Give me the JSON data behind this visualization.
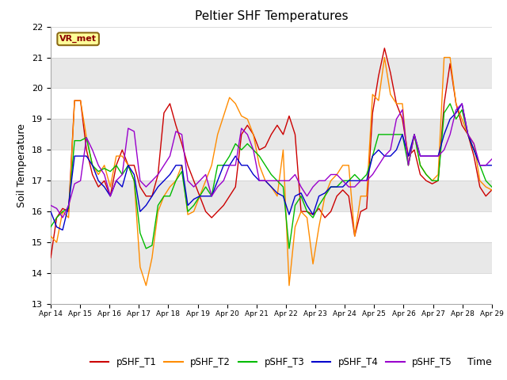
{
  "title": "Peltier SHF Temperatures",
  "xlabel": "Time",
  "ylabel": "Soil Temperature",
  "ylim": [
    13.0,
    22.0
  ],
  "yticks": [
    13.0,
    14.0,
    15.0,
    16.0,
    17.0,
    18.0,
    19.0,
    20.0,
    21.0,
    22.0
  ],
  "xtick_labels": [
    "Apr 14",
    "Apr 15",
    "Apr 16",
    "Apr 17",
    "Apr 18",
    "Apr 19",
    "Apr 20",
    "Apr 21",
    "Apr 22",
    "Apr 23",
    "Apr 24",
    "Apr 25",
    "Apr 26",
    "Apr 27",
    "Apr 28",
    "Apr 29"
  ],
  "annotation_text": "VR_met",
  "annotation_color": "#8B0000",
  "annotation_bg": "#FFFF99",
  "annotation_border": "#8B6914",
  "colors": {
    "T1": "#CC0000",
    "T2": "#FF8C00",
    "T3": "#00BB00",
    "T4": "#0000CC",
    "T5": "#9900CC"
  },
  "legend_labels": [
    "pSHF_T1",
    "pSHF_T2",
    "pSHF_T3",
    "pSHF_T4",
    "pSHF_T5"
  ],
  "bg_white": "#FFFFFF",
  "bg_gray": "#E8E8E8",
  "T1": [
    14.5,
    15.8,
    16.1,
    16.0,
    19.6,
    19.6,
    18.0,
    17.2,
    16.8,
    17.0,
    16.5,
    17.5,
    18.0,
    17.5,
    17.5,
    16.8,
    16.5,
    16.5,
    17.2,
    19.2,
    19.5,
    18.8,
    18.2,
    17.5,
    17.0,
    16.5,
    16.0,
    15.8,
    16.0,
    16.2,
    16.5,
    16.8,
    18.5,
    18.8,
    18.5,
    18.0,
    18.1,
    18.5,
    18.8,
    18.5,
    19.1,
    18.5,
    16.0,
    16.0,
    15.9,
    16.1,
    15.8,
    16.0,
    16.5,
    16.7,
    16.5,
    15.2,
    16.0,
    16.1,
    19.2,
    20.4,
    21.3,
    20.5,
    19.5,
    19.0,
    17.8,
    18.0,
    17.2,
    17.0,
    16.9,
    17.0,
    19.5,
    20.8,
    19.5,
    18.8,
    18.5,
    17.8,
    16.8,
    16.5,
    16.7
  ],
  "T2": [
    15.2,
    15.0,
    16.0,
    15.8,
    19.6,
    19.6,
    18.4,
    17.5,
    17.2,
    17.5,
    16.8,
    17.8,
    17.8,
    17.5,
    17.0,
    14.2,
    13.6,
    14.5,
    16.0,
    16.5,
    16.8,
    17.0,
    17.5,
    15.9,
    16.0,
    16.5,
    17.0,
    17.5,
    18.5,
    19.1,
    19.7,
    19.5,
    19.1,
    19.0,
    18.5,
    17.5,
    17.0,
    16.8,
    16.5,
    18.0,
    13.6,
    15.5,
    16.0,
    15.8,
    14.3,
    15.5,
    16.5,
    17.0,
    17.2,
    17.5,
    17.5,
    15.2,
    16.5,
    16.5,
    19.8,
    19.6,
    21.0,
    19.8,
    19.5,
    19.5,
    17.5,
    18.5,
    17.5,
    17.2,
    17.0,
    17.2,
    21.0,
    21.0,
    19.5,
    19.0,
    18.5,
    18.2,
    17.0,
    16.8,
    16.7
  ],
  "T3": [
    15.5,
    15.8,
    16.0,
    16.1,
    18.3,
    18.3,
    18.4,
    17.5,
    17.3,
    17.4,
    17.3,
    17.5,
    17.2,
    17.5,
    17.0,
    15.3,
    14.8,
    14.9,
    16.2,
    16.5,
    16.5,
    17.0,
    17.3,
    16.0,
    16.2,
    16.5,
    16.8,
    16.5,
    17.5,
    17.5,
    17.8,
    18.2,
    18.0,
    18.2,
    18.0,
    17.8,
    17.5,
    17.2,
    17.0,
    16.8,
    14.8,
    16.2,
    16.5,
    16.0,
    15.8,
    16.2,
    16.5,
    16.8,
    16.8,
    17.0,
    17.0,
    17.2,
    17.0,
    17.2,
    17.8,
    18.5,
    18.5,
    18.5,
    18.5,
    18.5,
    17.5,
    18.5,
    17.5,
    17.2,
    17.0,
    17.0,
    19.2,
    19.5,
    19.0,
    19.3,
    18.5,
    18.0,
    17.5,
    17.0,
    16.8
  ],
  "T4": [
    16.0,
    15.5,
    15.4,
    16.2,
    17.8,
    17.8,
    17.8,
    17.5,
    17.0,
    16.8,
    16.5,
    17.0,
    16.8,
    17.5,
    17.2,
    16.0,
    16.2,
    16.5,
    16.8,
    17.0,
    17.2,
    17.5,
    17.5,
    16.2,
    16.4,
    16.5,
    16.5,
    16.5,
    17.0,
    17.5,
    17.5,
    17.8,
    17.5,
    17.5,
    17.2,
    17.0,
    17.0,
    16.8,
    16.6,
    16.5,
    15.9,
    16.5,
    16.6,
    16.2,
    15.9,
    16.5,
    16.6,
    16.8,
    16.8,
    16.8,
    17.0,
    17.0,
    17.0,
    17.0,
    17.8,
    18.0,
    17.8,
    17.8,
    18.0,
    18.5,
    17.8,
    18.5,
    17.8,
    17.8,
    17.8,
    17.8,
    18.5,
    19.0,
    19.2,
    19.5,
    18.5,
    18.0,
    17.5,
    17.5,
    17.5
  ],
  "T5": [
    16.2,
    16.1,
    15.8,
    16.2,
    16.9,
    17.0,
    18.4,
    18.0,
    17.5,
    17.2,
    16.5,
    17.0,
    17.2,
    18.7,
    18.6,
    17.0,
    16.8,
    17.0,
    17.2,
    17.5,
    17.8,
    18.6,
    18.5,
    17.0,
    16.8,
    17.0,
    17.2,
    16.5,
    16.8,
    17.0,
    17.5,
    17.5,
    18.7,
    18.5,
    18.0,
    17.0,
    17.0,
    17.0,
    17.0,
    17.0,
    17.0,
    17.2,
    16.8,
    16.5,
    16.8,
    17.0,
    17.0,
    17.2,
    17.2,
    17.0,
    16.8,
    16.8,
    17.0,
    17.0,
    17.2,
    17.5,
    17.8,
    18.0,
    19.0,
    19.3,
    17.5,
    18.5,
    17.8,
    17.8,
    17.8,
    17.8,
    18.0,
    18.5,
    19.3,
    19.5,
    18.5,
    18.2,
    17.5,
    17.5,
    17.7
  ]
}
